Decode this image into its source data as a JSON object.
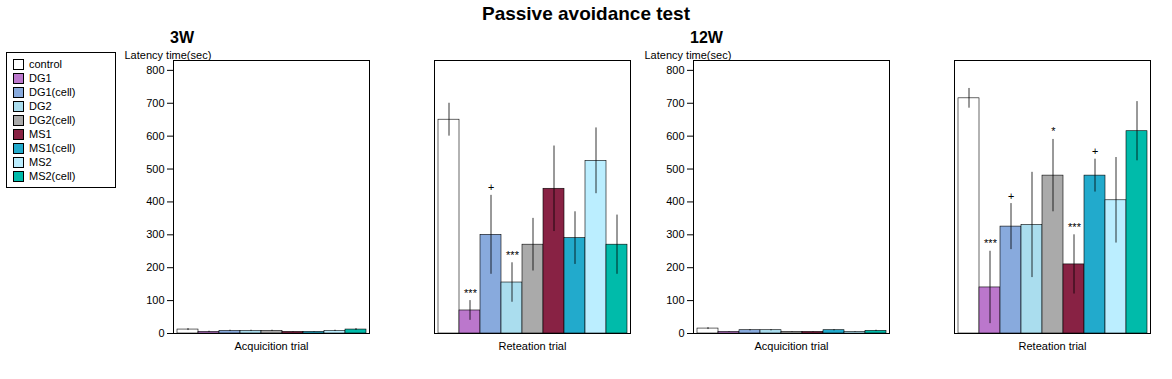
{
  "chart_data": [
    {
      "type": "bar",
      "title": "Passive avoidance test",
      "subtitle": "3W",
      "ylabel": "Latency time(sec)",
      "categories": [
        "Acquicition trial",
        "Reteation trial"
      ],
      "series": [
        {
          "name": "control",
          "color": "#FFFFFF",
          "values": [
            12,
            650
          ],
          "errors": [
            3,
            50
          ]
        },
        {
          "name": "DG1",
          "color": "#BB77CC",
          "values": [
            5,
            70
          ],
          "errors": [
            2,
            30
          ]
        },
        {
          "name": "DG1(cell)",
          "color": "#88AADD",
          "values": [
            8,
            300
          ],
          "errors": [
            2,
            120
          ]
        },
        {
          "name": "DG2",
          "color": "#AADDEE",
          "values": [
            8,
            155
          ],
          "errors": [
            2,
            60
          ]
        },
        {
          "name": "DG2(cell)",
          "color": "#AAAAAA",
          "values": [
            8,
            270
          ],
          "errors": [
            2,
            80
          ]
        },
        {
          "name": "MS1",
          "color": "#882244",
          "values": [
            5,
            440
          ],
          "errors": [
            1,
            130
          ]
        },
        {
          "name": "MS1(cell)",
          "color": "#22AACC",
          "values": [
            5,
            290
          ],
          "errors": [
            1,
            80
          ]
        },
        {
          "name": "MS2",
          "color": "#BBEEFF",
          "values": [
            8,
            525
          ],
          "errors": [
            2,
            100
          ]
        },
        {
          "name": "MS2(cell)",
          "color": "#00BBAA",
          "values": [
            12,
            270
          ],
          "errors": [
            3,
            90
          ]
        }
      ],
      "annotations": [
        {
          "category": "Reteation trial",
          "series": "DG1",
          "text": "***"
        },
        {
          "category": "Reteation trial",
          "series": "DG1(cell)",
          "text": "+"
        },
        {
          "category": "Reteation trial",
          "series": "DG2",
          "text": "***"
        }
      ],
      "ylim": [
        0,
        830
      ],
      "yticks": [
        0,
        100,
        200,
        300,
        400,
        500,
        600,
        700,
        800
      ],
      "legend": "upper left"
    },
    {
      "type": "bar",
      "subtitle": "12W",
      "ylabel": "Latency time(sec)",
      "categories": [
        "Acquicition trial",
        "Reteation trial"
      ],
      "series": [
        {
          "name": "control",
          "color": "#FFFFFF",
          "values": [
            15,
            715
          ],
          "errors": [
            3,
            30
          ]
        },
        {
          "name": "DG1",
          "color": "#BB77CC",
          "values": [
            5,
            140
          ],
          "errors": [
            1,
            110
          ]
        },
        {
          "name": "DG1(cell)",
          "color": "#88AADD",
          "values": [
            10,
            325
          ],
          "errors": [
            2,
            70
          ]
        },
        {
          "name": "DG2",
          "color": "#AADDEE",
          "values": [
            10,
            330
          ],
          "errors": [
            2,
            160
          ]
        },
        {
          "name": "DG2(cell)",
          "color": "#AAAAAA",
          "values": [
            5,
            480
          ],
          "errors": [
            1,
            110
          ]
        },
        {
          "name": "MS1",
          "color": "#882244",
          "values": [
            5,
            210
          ],
          "errors": [
            1,
            90
          ]
        },
        {
          "name": "MS1(cell)",
          "color": "#22AACC",
          "values": [
            10,
            480
          ],
          "errors": [
            2,
            50
          ]
        },
        {
          "name": "MS2",
          "color": "#BBEEFF",
          "values": [
            5,
            405
          ],
          "errors": [
            1,
            130
          ]
        },
        {
          "name": "MS2(cell)",
          "color": "#00BBAA",
          "values": [
            8,
            615
          ],
          "errors": [
            2,
            90
          ]
        }
      ],
      "annotations": [
        {
          "category": "Reteation trial",
          "series": "DG1",
          "text": "***"
        },
        {
          "category": "Reteation trial",
          "series": "DG1(cell)",
          "text": "+"
        },
        {
          "category": "Reteation trial",
          "series": "DG2(cell)",
          "text": "*"
        },
        {
          "category": "Reteation trial",
          "series": "MS1",
          "text": "***"
        },
        {
          "category": "Reteation trial",
          "series": "MS1(cell)",
          "text": "+"
        }
      ],
      "ylim": [
        0,
        830
      ],
      "yticks": [
        0,
        100,
        200,
        300,
        400,
        500,
        600,
        700,
        800
      ]
    }
  ]
}
